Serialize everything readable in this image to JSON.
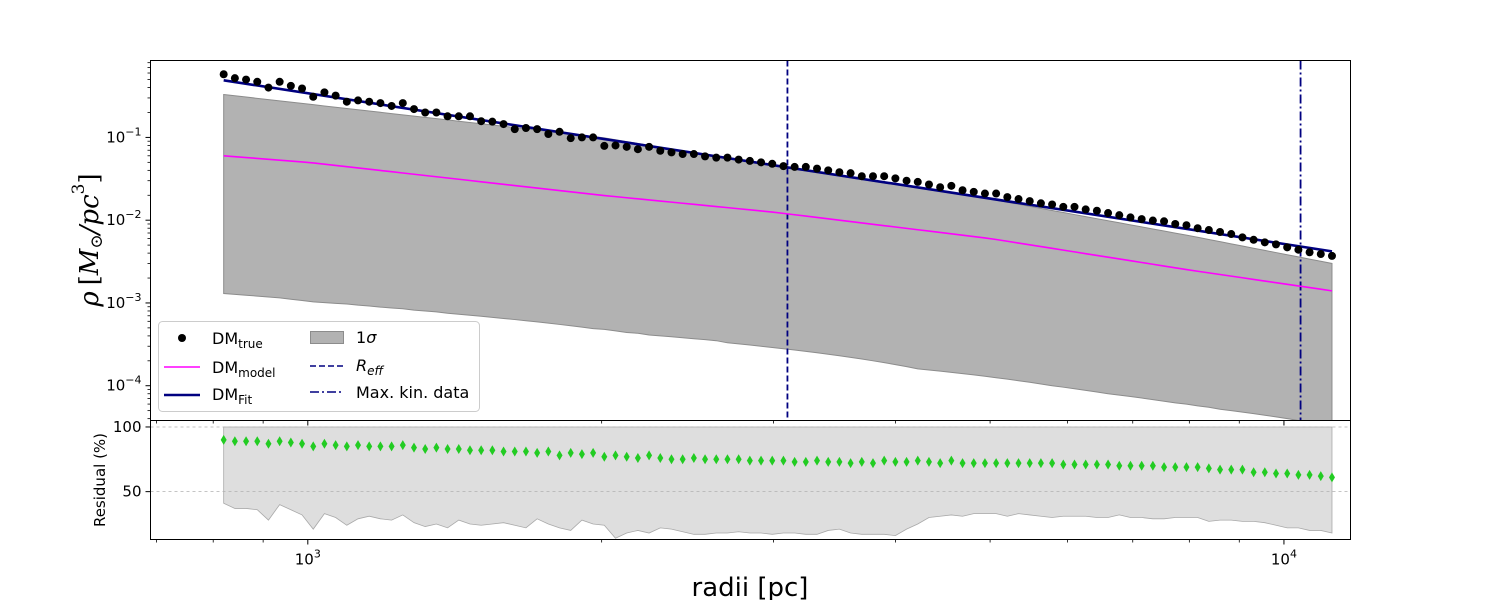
{
  "chart_data": [
    {
      "type": "scatter",
      "panel": "density",
      "xscale": "log",
      "yscale": "log",
      "xlim": [
        690,
        11700
      ],
      "ylim": [
        3.8e-05,
        0.85
      ],
      "xlabel": "radii [pc]",
      "ylabel_parts": {
        "rho": "ρ",
        "open": "[",
        "M": "M",
        "sun": "⊙",
        "slash": "/",
        "pc": "pc",
        "exp": "3",
        "close": "]"
      },
      "x_ticks": [
        {
          "value": 1000,
          "base": "10",
          "exp": "3"
        },
        {
          "value": 10000,
          "base": "10",
          "exp": "4"
        }
      ],
      "y_ticks": [
        {
          "value": 0.0001,
          "base": "10",
          "exp": "−4"
        },
        {
          "value": 0.001,
          "base": "10",
          "exp": "−3"
        },
        {
          "value": 0.01,
          "base": "10",
          "exp": "−2"
        },
        {
          "value": 0.1,
          "base": "10",
          "exp": "−1"
        }
      ],
      "r_min": 820,
      "r_max": 11200,
      "n_points": 100,
      "dm_true": [
        0.58,
        0.52,
        0.5,
        0.47,
        0.4,
        0.47,
        0.42,
        0.39,
        0.31,
        0.35,
        0.32,
        0.27,
        0.28,
        0.27,
        0.26,
        0.24,
        0.26,
        0.22,
        0.2,
        0.2,
        0.18,
        0.18,
        0.18,
        0.157,
        0.155,
        0.145,
        0.126,
        0.13,
        0.126,
        0.11,
        0.117,
        0.098,
        0.1,
        0.1,
        0.079,
        0.08,
        0.077,
        0.072,
        0.077,
        0.069,
        0.066,
        0.063,
        0.063,
        0.059,
        0.057,
        0.057,
        0.054,
        0.052,
        0.05,
        0.048,
        0.045,
        0.044,
        0.044,
        0.042,
        0.04,
        0.038,
        0.037,
        0.034,
        0.034,
        0.034,
        0.032,
        0.03,
        0.029,
        0.027,
        0.025,
        0.026,
        0.023,
        0.022,
        0.021,
        0.021,
        0.019,
        0.018,
        0.017,
        0.016,
        0.0155,
        0.0145,
        0.0145,
        0.0135,
        0.013,
        0.0122,
        0.0115,
        0.0108,
        0.0103,
        0.0099,
        0.0097,
        0.009,
        0.0087,
        0.008,
        0.0076,
        0.0072,
        0.0068,
        0.0062,
        0.0058,
        0.0054,
        0.0051,
        0.0047,
        0.0044,
        0.0041,
        0.0039,
        0.0037
      ],
      "dm_fit": {
        "r": [
          820,
          11200
        ],
        "rho": [
          0.49,
          0.0042
        ]
      },
      "dm_model": {
        "r": [
          820,
          1000,
          2000,
          3000,
          5000,
          8000,
          11200
        ],
        "rho": [
          0.06,
          0.05,
          0.02,
          0.0125,
          0.006,
          0.0025,
          0.0014
        ]
      },
      "band_upper": {
        "r": [
          820,
          2000,
          3000,
          5000,
          8000,
          11200
        ],
        "rho": [
          0.33,
          0.1,
          0.045,
          0.018,
          0.0065,
          0.003
        ]
      },
      "band_lower": [
        0.0013,
        0.00127,
        0.00124,
        0.00121,
        0.00118,
        0.00115,
        0.00111,
        0.00107,
        0.00103,
        0.00101,
        0.00099,
        0.00097,
        0.00094,
        0.00092,
        0.00089,
        0.00087,
        0.00085,
        0.00082,
        0.0008,
        0.00078,
        0.00075,
        0.00073,
        0.00071,
        0.00069,
        0.00067,
        0.00065,
        0.00063,
        0.00061,
        0.00059,
        0.00057,
        0.00055,
        0.00053,
        0.00051,
        0.00049,
        0.00048,
        0.00046,
        0.00044,
        0.00043,
        0.00041,
        0.0004,
        0.00039,
        0.00038,
        0.00037,
        0.00036,
        0.00035,
        0.00033,
        0.00032,
        0.00031,
        0.0003,
        0.00029,
        0.00028,
        0.00027,
        0.00026,
        0.00025,
        0.00024,
        0.00023,
        0.00022,
        0.00021,
        0.0002,
        0.00019,
        0.00018,
        0.00017,
        0.00016,
        0.000155,
        0.00015,
        0.000145,
        0.00014,
        0.000135,
        0.00013,
        0.000125,
        0.00012,
        0.000115,
        0.00011,
        0.000105,
        0.0001,
        9.6e-05,
        9.2e-05,
        8.8e-05,
        8.4e-05,
        8e-05,
        7.7e-05,
        7.4e-05,
        7.1e-05,
        6.8e-05,
        6.5e-05,
        6.2e-05,
        6e-05,
        5.7e-05,
        5.5e-05,
        5.2e-05,
        5e-05,
        4.8e-05,
        4.6e-05,
        4.4e-05,
        4.2e-05,
        4e-05,
        3.8e-05,
        3.4e-05,
        3e-05,
        2.7e-05
      ],
      "r_eff": 3100,
      "max_kin_data": 10400,
      "legend_position": "lower-left",
      "legend": {
        "dm_true": {
          "base": "DM",
          "sub": "true"
        },
        "dm_model": {
          "base": "DM",
          "sub": "model"
        },
        "dm_fit": {
          "base": "DM",
          "sub": "Fit"
        },
        "sigma": {
          "base": "1",
          "italic": "σ"
        },
        "reff": {
          "base": "R",
          "sub": "eff"
        },
        "maxkin": {
          "label": "Max. kin. data"
        }
      },
      "colors": {
        "dm_true": "#000000",
        "dm_model": "#ff00ff",
        "dm_fit": "#000080",
        "band": "#b2b2b2",
        "band_edge": "#8c8c8c",
        "vlines": "#000080"
      }
    },
    {
      "type": "scatter",
      "panel": "residual",
      "xscale": "log",
      "ylim": [
        13,
        105
      ],
      "ylabel": "Residual (%)",
      "y_ticks": [
        50,
        100
      ],
      "gridlines": [
        50,
        100
      ],
      "residual": [
        90,
        89,
        89,
        89,
        87,
        89,
        88,
        87,
        85,
        87,
        86,
        85,
        86,
        85,
        85,
        85,
        86,
        84,
        83,
        84,
        83,
        83,
        82,
        82,
        82,
        81,
        81,
        81,
        80,
        81,
        78,
        80,
        79,
        80,
        77,
        78,
        77,
        76,
        78,
        76,
        75,
        75,
        76,
        75,
        75,
        75,
        75,
        74,
        74,
        74,
        74,
        73,
        73,
        74,
        73,
        73,
        72,
        73,
        72,
        74,
        73,
        73,
        74,
        73,
        72,
        74,
        72,
        72,
        72,
        72,
        72,
        72,
        72,
        72,
        72,
        71,
        71,
        71,
        71,
        71,
        70,
        70,
        70,
        70,
        69,
        69,
        69,
        69,
        68,
        67,
        67,
        67,
        65,
        65,
        64,
        64,
        63,
        63,
        62,
        61
      ],
      "band_upper": 100,
      "band_lower": [
        41,
        37,
        37,
        36,
        28,
        40,
        36,
        32,
        21,
        33,
        30,
        24,
        29,
        31,
        29,
        28,
        32,
        26,
        23,
        25,
        22,
        28,
        25,
        24,
        25,
        26,
        24,
        22,
        29,
        25,
        22,
        20,
        28,
        25,
        24,
        14,
        18,
        20,
        18,
        22,
        21,
        19,
        17,
        17,
        18,
        18,
        19,
        18,
        18,
        17,
        18,
        18,
        17,
        17,
        20,
        21,
        18,
        17,
        17,
        17,
        16,
        21,
        25,
        30,
        31,
        32,
        31,
        33,
        33,
        33,
        31,
        33,
        32,
        31,
        30,
        31,
        31,
        31,
        30,
        30,
        32,
        30,
        30,
        29,
        29,
        30,
        30,
        30,
        27,
        28,
        28,
        27,
        27,
        26,
        24,
        22,
        22,
        20,
        20,
        18
      ],
      "colors": {
        "points": "#22cc22",
        "band": "#dedede",
        "band_edge": "#a9a9a9",
        "grid": "#b0b0b0"
      }
    }
  ]
}
